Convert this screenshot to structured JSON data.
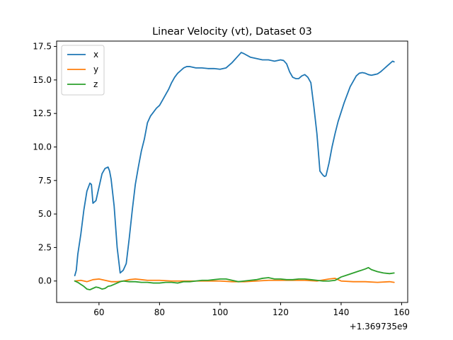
{
  "chart_data": {
    "type": "line",
    "title": "Linear Velocity (vt), Dataset 03",
    "xlabel": "",
    "ylabel": "",
    "x_offset_label": "+1.369735e9",
    "xlim": [
      46,
      162
    ],
    "ylim": [
      -1.6,
      17.9
    ],
    "xticks": [
      60,
      80,
      100,
      120,
      140,
      160
    ],
    "xtick_labels": [
      "60",
      "80",
      "100",
      "120",
      "140",
      "160"
    ],
    "yticks": [
      0.0,
      2.5,
      5.0,
      7.5,
      10.0,
      12.5,
      15.0,
      17.5
    ],
    "ytick_labels": [
      "0.0",
      "2.5",
      "5.0",
      "7.5",
      "10.0",
      "12.5",
      "15.0",
      "17.5"
    ],
    "grid": false,
    "legend_position": "top-left",
    "series": [
      {
        "name": "x",
        "color": "#1f77b4",
        "x": [
          52,
          52.5,
          53,
          54,
          55,
          56,
          57,
          57.5,
          58,
          59,
          60,
          61,
          62,
          63,
          63.5,
          64,
          65,
          66,
          67,
          68,
          69,
          70,
          71,
          72,
          73,
          74,
          75,
          76,
          77,
          78,
          79,
          80,
          81,
          82,
          83,
          84,
          85,
          86,
          87,
          88,
          89,
          90,
          92,
          94,
          96,
          98,
          100,
          102,
          104,
          106,
          107,
          108,
          110,
          112,
          114,
          116,
          118,
          120,
          121,
          122,
          123,
          124,
          125,
          126,
          127,
          128,
          129,
          130,
          131,
          132,
          133,
          134,
          134.5,
          135,
          136,
          137,
          138,
          139,
          140,
          141,
          142,
          143,
          144,
          145,
          146,
          147,
          148,
          149,
          150,
          151,
          152,
          153,
          154,
          155,
          156,
          157,
          157.5
        ],
        "y": [
          0.4,
          0.8,
          2.0,
          3.5,
          5.3,
          6.7,
          7.3,
          7.2,
          5.8,
          6.0,
          7.0,
          8.0,
          8.4,
          8.5,
          8.2,
          7.6,
          5.6,
          2.5,
          0.6,
          0.8,
          1.3,
          3.2,
          5.3,
          7.2,
          8.5,
          9.7,
          10.6,
          11.8,
          12.3,
          12.6,
          12.9,
          13.1,
          13.5,
          13.9,
          14.3,
          14.8,
          15.2,
          15.5,
          15.7,
          15.9,
          16.0,
          16.0,
          15.9,
          15.9,
          15.85,
          15.85,
          15.8,
          15.9,
          16.3,
          16.8,
          17.05,
          16.95,
          16.7,
          16.6,
          16.5,
          16.5,
          16.4,
          16.5,
          16.45,
          16.2,
          15.6,
          15.2,
          15.1,
          15.1,
          15.3,
          15.4,
          15.2,
          14.8,
          13.0,
          11.0,
          8.2,
          7.9,
          7.8,
          7.85,
          8.8,
          10.0,
          11.0,
          11.9,
          12.6,
          13.3,
          13.9,
          14.5,
          14.9,
          15.3,
          15.5,
          15.55,
          15.5,
          15.4,
          15.35,
          15.4,
          15.45,
          15.6,
          15.8,
          16.0,
          16.2,
          16.4,
          16.35
        ],
        "label_visible": true
      },
      {
        "name": "y",
        "color": "#ff7f0e",
        "x": [
          52,
          54,
          56,
          58,
          60,
          62,
          64,
          66,
          68,
          70,
          72,
          74,
          76,
          78,
          80,
          84,
          88,
          92,
          96,
          100,
          104,
          108,
          112,
          116,
          120,
          124,
          128,
          132,
          136,
          138,
          140,
          144,
          148,
          152,
          156,
          157.5
        ],
        "y": [
          0.0,
          0.05,
          -0.05,
          0.1,
          0.15,
          0.05,
          -0.05,
          -0.05,
          0.0,
          0.1,
          0.15,
          0.1,
          0.05,
          0.05,
          0.05,
          0.0,
          0.0,
          0.0,
          0.0,
          0.0,
          -0.05,
          -0.05,
          0.0,
          0.05,
          0.05,
          0.05,
          0.05,
          0.0,
          0.15,
          0.2,
          0.0,
          -0.05,
          -0.05,
          -0.1,
          -0.05,
          -0.1
        ]
      },
      {
        "name": "z",
        "color": "#2ca02c",
        "x": [
          52,
          53,
          54,
          55,
          56,
          57,
          58,
          59,
          60,
          61,
          62,
          63,
          64,
          65,
          66,
          67,
          68,
          70,
          72,
          74,
          76,
          78,
          80,
          82,
          84,
          86,
          88,
          90,
          92,
          94,
          96,
          98,
          100,
          102,
          104,
          106,
          108,
          110,
          112,
          114,
          116,
          118,
          120,
          122,
          124,
          126,
          128,
          130,
          132,
          134,
          136,
          138,
          140,
          142,
          144,
          146,
          148,
          149,
          150,
          152,
          154,
          156,
          157.5
        ],
        "y": [
          0.0,
          -0.1,
          -0.25,
          -0.4,
          -0.6,
          -0.65,
          -0.55,
          -0.45,
          -0.5,
          -0.6,
          -0.55,
          -0.4,
          -0.35,
          -0.25,
          -0.15,
          -0.05,
          0.0,
          -0.05,
          -0.05,
          -0.1,
          -0.1,
          -0.15,
          -0.15,
          -0.1,
          -0.1,
          -0.15,
          -0.05,
          -0.05,
          0.0,
          0.05,
          0.05,
          0.1,
          0.15,
          0.15,
          0.05,
          -0.05,
          0.0,
          0.05,
          0.1,
          0.2,
          0.25,
          0.15,
          0.15,
          0.1,
          0.1,
          0.15,
          0.15,
          0.1,
          0.05,
          0.0,
          0.0,
          0.05,
          0.3,
          0.45,
          0.6,
          0.75,
          0.9,
          1.0,
          0.85,
          0.7,
          0.6,
          0.55,
          0.6
        ]
      }
    ]
  }
}
